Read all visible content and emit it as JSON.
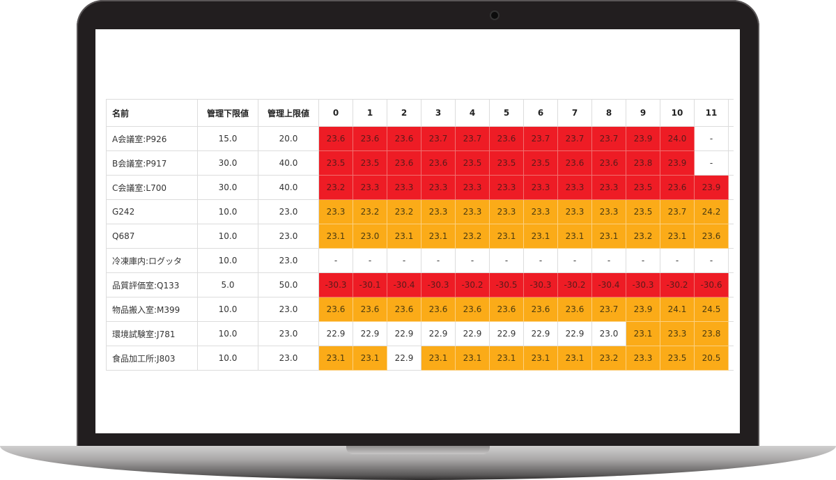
{
  "colors": {
    "alert_high": "#ee1c25",
    "alert_warn": "#fbab18",
    "normal": "#ffffff"
  },
  "table": {
    "headers": {
      "name": "名前",
      "lower": "管理下限値",
      "upper": "管理上限値",
      "hours": [
        "0",
        "1",
        "2",
        "3",
        "4",
        "5",
        "6",
        "7",
        "8",
        "9",
        "10",
        "11"
      ]
    },
    "rows": [
      {
        "name": "A会議室:P926",
        "lower": "15.0",
        "upper": "20.0",
        "values": [
          "23.6",
          "23.6",
          "23.6",
          "23.7",
          "23.7",
          "23.6",
          "23.7",
          "23.7",
          "23.7",
          "23.9",
          "24.0",
          "-"
        ],
        "status": "rrrrrrrrrrrn"
      },
      {
        "name": "B会議室:P917",
        "lower": "30.0",
        "upper": "40.0",
        "values": [
          "23.5",
          "23.5",
          "23.6",
          "23.6",
          "23.5",
          "23.5",
          "23.5",
          "23.6",
          "23.6",
          "23.8",
          "23.9",
          "-"
        ],
        "status": "rrrrrrrrrrrn"
      },
      {
        "name": "C会議室:L700",
        "lower": "30.0",
        "upper": "40.0",
        "values": [
          "23.2",
          "23.3",
          "23.3",
          "23.3",
          "23.3",
          "23.3",
          "23.3",
          "23.3",
          "23.3",
          "23.5",
          "23.6",
          "23.9"
        ],
        "status": "rrrrrrrrrrrr"
      },
      {
        "name": "G242",
        "lower": "10.0",
        "upper": "23.0",
        "values": [
          "23.3",
          "23.2",
          "23.2",
          "23.3",
          "23.3",
          "23.3",
          "23.3",
          "23.3",
          "23.3",
          "23.5",
          "23.7",
          "24.2"
        ],
        "status": "oooooooooooo"
      },
      {
        "name": "Q687",
        "lower": "10.0",
        "upper": "23.0",
        "values": [
          "23.1",
          "23.0",
          "23.1",
          "23.1",
          "23.2",
          "23.1",
          "23.1",
          "23.1",
          "23.1",
          "23.2",
          "23.1",
          "23.6"
        ],
        "status": "oooooooooooo"
      },
      {
        "name": "冷凍庫内:ログッタ",
        "lower": "10.0",
        "upper": "23.0",
        "values": [
          "-",
          "-",
          "-",
          "-",
          "-",
          "-",
          "-",
          "-",
          "-",
          "-",
          "-",
          "-"
        ],
        "status": "nnnnnnnnnnnn"
      },
      {
        "name": "品質評価室:Q133",
        "lower": "5.0",
        "upper": "50.0",
        "values": [
          "-30.3",
          "-30.1",
          "-30.4",
          "-30.3",
          "-30.2",
          "-30.5",
          "-30.3",
          "-30.2",
          "-30.4",
          "-30.3",
          "-30.2",
          "-30.6"
        ],
        "status": "rrrrrrrrrrrr"
      },
      {
        "name": "物品搬入室:M399",
        "lower": "10.0",
        "upper": "23.0",
        "values": [
          "23.6",
          "23.6",
          "23.6",
          "23.6",
          "23.6",
          "23.6",
          "23.6",
          "23.6",
          "23.7",
          "23.9",
          "24.1",
          "24.5"
        ],
        "status": "oooooooooooo"
      },
      {
        "name": "環境試験室:J781",
        "lower": "10.0",
        "upper": "23.0",
        "values": [
          "22.9",
          "22.9",
          "22.9",
          "22.9",
          "22.9",
          "22.9",
          "22.9",
          "22.9",
          "23.0",
          "23.1",
          "23.3",
          "23.8"
        ],
        "status": "nnnnnnnnnooo"
      },
      {
        "name": "食品加工所:J803",
        "lower": "10.0",
        "upper": "23.0",
        "values": [
          "23.1",
          "23.1",
          "22.9",
          "23.1",
          "23.1",
          "23.1",
          "23.1",
          "23.1",
          "23.2",
          "23.3",
          "23.5",
          "20.5"
        ],
        "status": "oonooooooooon"
      }
    ]
  }
}
